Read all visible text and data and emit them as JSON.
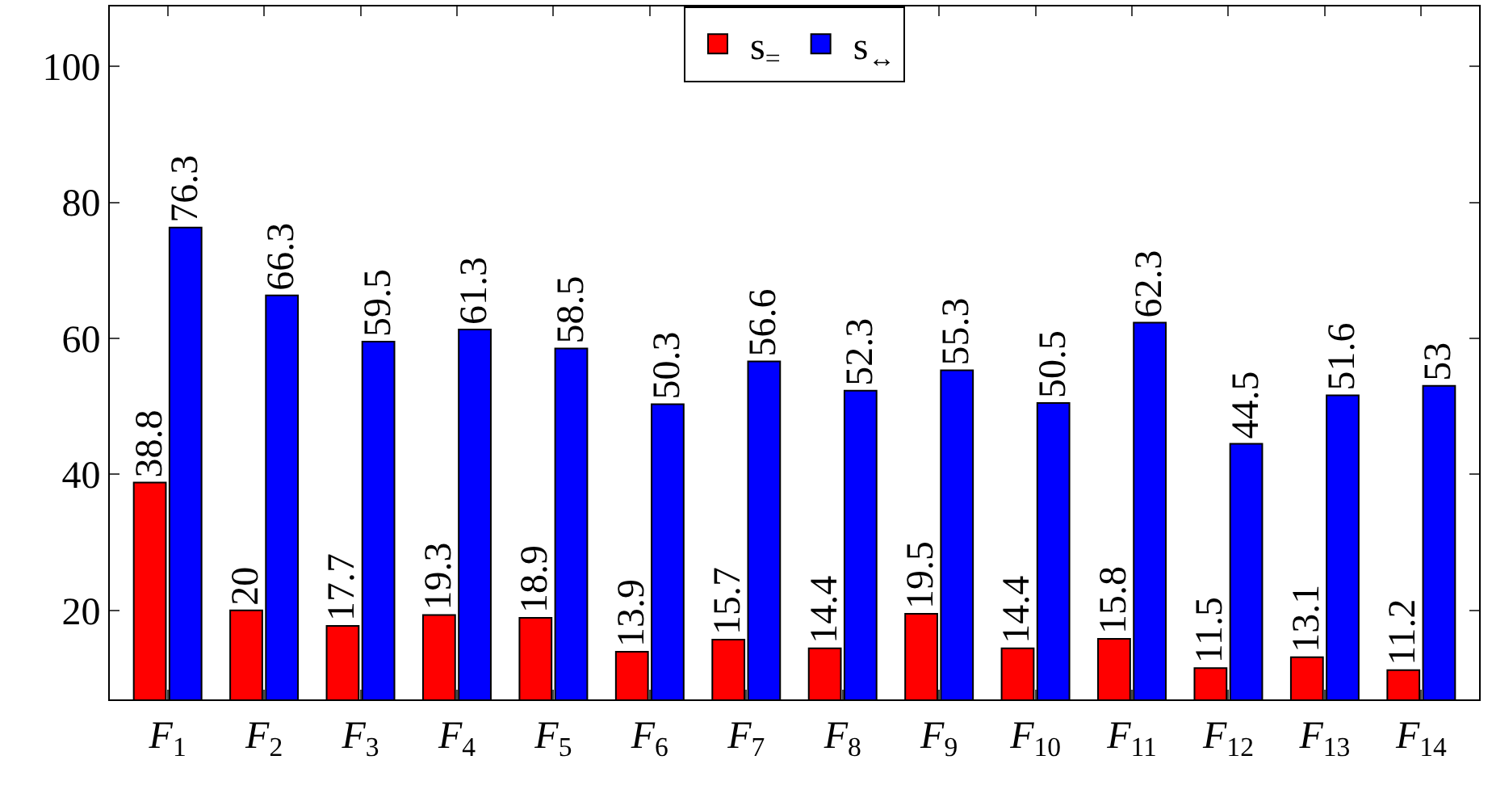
{
  "chart_data": {
    "type": "bar",
    "categories": [
      "F$_{1}$",
      "F$_{2}$",
      "F$_{3}$",
      "F$_{4}$",
      "F$_{5}$",
      "F$_{6}$",
      "F$_{7}$",
      "F$_{8}$",
      "F$_{9}$",
      "F$_{10}$",
      "F$_{11}$",
      "F$_{12}$",
      "F$_{13}$",
      "F$_{14}$"
    ],
    "series": [
      {
        "name": "s$_{=}$",
        "color": "#ff0000",
        "values": [
          38.8,
          20,
          17.7,
          19.3,
          18.9,
          13.9,
          15.7,
          14.4,
          19.5,
          14.4,
          15.8,
          11.5,
          13.1,
          11.2
        ]
      },
      {
        "name": "s$_{↔}$",
        "color": "#0000ff",
        "values": [
          76.3,
          66.3,
          59.5,
          61.3,
          58.5,
          50.3,
          56.6,
          52.3,
          55.3,
          50.5,
          62.3,
          44.5,
          51.6,
          53
        ]
      }
    ],
    "ylim": [
      6.9,
      108.8
    ],
    "yticks": [
      20,
      40,
      60,
      80,
      100
    ],
    "grid": false,
    "legend": "top",
    "data_labels": true
  }
}
